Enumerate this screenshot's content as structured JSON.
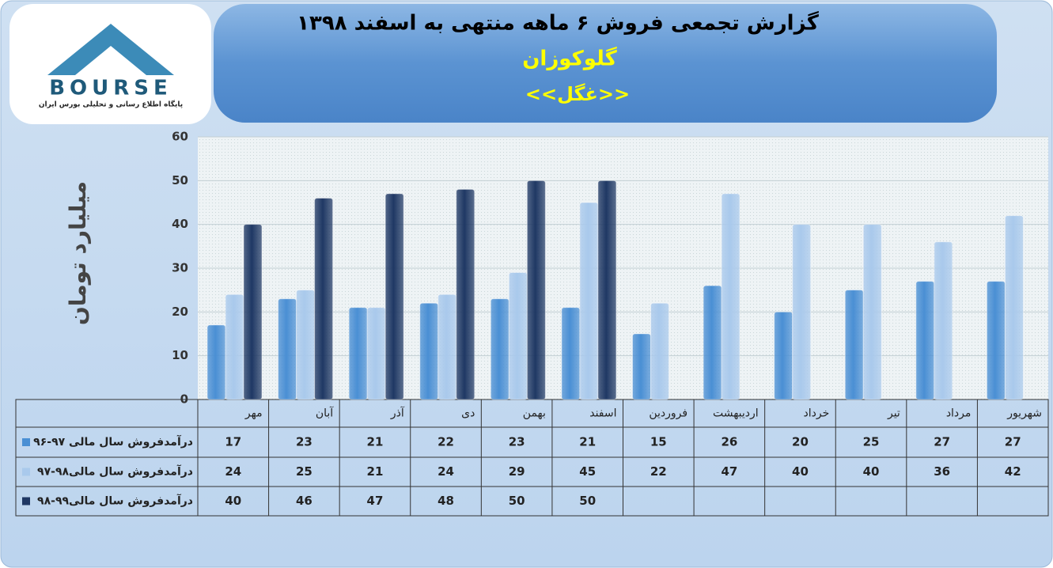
{
  "logo": {
    "name": "BOURSE",
    "tagline": "پایگاه اطلاع رسانی و تحلیلی بورس ایران"
  },
  "chart_data": {
    "type": "bar",
    "title": "گزارش تجمعی  فروش ۶ ماهه منتهی به اسفند ۱۳۹۸",
    "subtitle": [
      "گلوکوزان",
      "<<غگل>>"
    ],
    "y_label": "میلیارد تومان",
    "categories": [
      "مهر",
      "آبان",
      "آذر",
      "دی",
      "بهمن",
      "اسفند",
      "فروردین",
      "اردیبهشت",
      "خرداد",
      "تیر",
      "مرداد",
      "شهریور"
    ],
    "series": [
      {
        "name": "درآمدفروش سال مالی ۹۷-۹۶",
        "color": "#4a8fd4",
        "values": [
          17,
          23,
          21,
          22,
          23,
          21,
          15,
          26,
          20,
          25,
          27,
          27
        ]
      },
      {
        "name": "درآمدفروش سال مالی۹۸-۹۷",
        "color": "#a9c9ec",
        "values": [
          24,
          25,
          21,
          24,
          29,
          45,
          22,
          47,
          40,
          40,
          36,
          42
        ]
      },
      {
        "name": "درآمدفروش سال مالی۹۹-۹۸",
        "color": "#1f3864",
        "values": [
          40,
          46,
          47,
          48,
          50,
          50,
          null,
          null,
          null,
          null,
          null,
          null
        ]
      }
    ],
    "ylim": [
      0,
      60
    ],
    "yticks": [
      0,
      10,
      20,
      30,
      40,
      50,
      60
    ],
    "grid": true
  }
}
